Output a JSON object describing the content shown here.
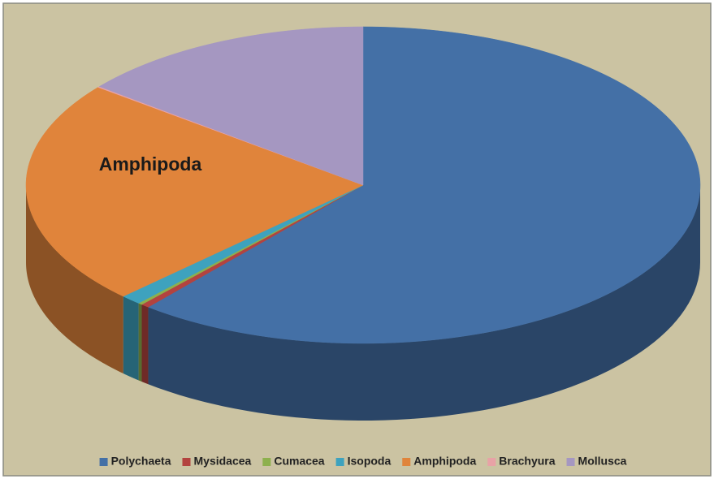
{
  "chart_data": {
    "type": "pie3d",
    "annotation": "Amphipoda",
    "series": [
      {
        "name": "Polychaeta",
        "color": "#4470a6",
        "values": [
          61
        ]
      },
      {
        "name": "Mysidacea",
        "color": "#b3433f",
        "values": [
          0.4
        ]
      },
      {
        "name": "Cumacea",
        "color": "#8db04d",
        "values": [
          0.2
        ]
      },
      {
        "name": "Isopoda",
        "color": "#3ea2be",
        "values": [
          1
        ]
      },
      {
        "name": "Amphipoda",
        "color": "#e0843b",
        "values": [
          23
        ]
      },
      {
        "name": "Brachyura",
        "color": "#e8a2a6",
        "values": [
          0.1
        ]
      },
      {
        "name": "Mollusca",
        "color": "#a597c1",
        "values": [
          14.3
        ]
      }
    ],
    "legend": "bottom"
  }
}
